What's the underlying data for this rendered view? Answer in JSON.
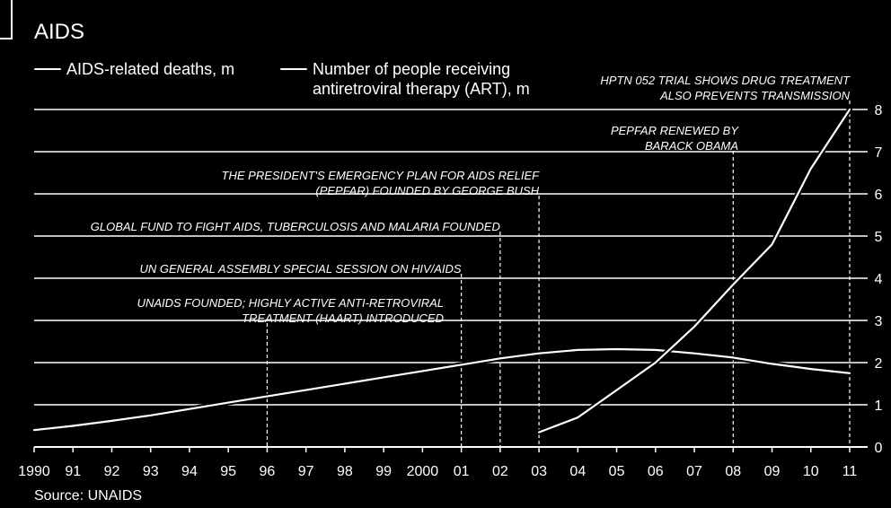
{
  "header": {
    "title": "AIDS",
    "source": "Source: UNAIDS"
  },
  "legend": [
    {
      "label": "AIDS-related deaths, m"
    },
    {
      "label": "Number of people receiving\nantiretroviral therapy (ART), m"
    }
  ],
  "colors": {
    "background": "#000000",
    "foreground": "#ffffff"
  },
  "chart_data": {
    "type": "line",
    "title": "AIDS",
    "x_tick_labels": [
      "1990",
      "91",
      "92",
      "93",
      "94",
      "95",
      "96",
      "97",
      "98",
      "99",
      "2000",
      "01",
      "02",
      "03",
      "04",
      "05",
      "06",
      "07",
      "08",
      "09",
      "10",
      "11"
    ],
    "ylim": [
      0,
      8
    ],
    "y_ticks": [
      0,
      1,
      2,
      3,
      4,
      5,
      6,
      7,
      8
    ],
    "y_axis_side": "right",
    "grid": true,
    "legend_placement": "top-left",
    "series": [
      {
        "name": "AIDS-related deaths, m",
        "x": [
          1990,
          1991,
          1992,
          1993,
          1994,
          1995,
          1996,
          1997,
          1998,
          1999,
          2000,
          2001,
          2002,
          2003,
          2004,
          2005,
          2006,
          2007,
          2008,
          2009,
          2010,
          2011
        ],
        "values": [
          0.4,
          0.5,
          0.62,
          0.75,
          0.9,
          1.05,
          1.2,
          1.35,
          1.5,
          1.65,
          1.8,
          1.95,
          2.1,
          2.22,
          2.3,
          2.32,
          2.3,
          2.22,
          2.12,
          1.97,
          1.85,
          1.75
        ]
      },
      {
        "name": "Number of people receiving antiretroviral therapy (ART), m",
        "x": [
          2003,
          2004,
          2005,
          2006,
          2007,
          2008,
          2009,
          2010,
          2011
        ],
        "values": [
          0.35,
          0.7,
          1.35,
          2.0,
          2.85,
          3.85,
          4.8,
          6.6,
          8.0
        ]
      }
    ],
    "events": [
      {
        "year": 1996,
        "label": "UNAIDS FOUNDED; HIGHLY ACTIVE ANTI-RETROVIRAL\nTREATMENT (HAART) INTRODUCED"
      },
      {
        "year": 2001,
        "label": "UN GENERAL ASSEMBLY SPECIAL SESSION ON HIV/AIDS"
      },
      {
        "year": 2002,
        "label": "GLOBAL FUND TO FIGHT AIDS, TUBERCULOSIS AND MALARIA FOUNDED"
      },
      {
        "year": 2003,
        "label": "THE PRESIDENT'S EMERGENCY PLAN FOR AIDS RELIEF\n(PEPFAR) FOUNDED BY GEORGE BUSH"
      },
      {
        "year": 2008,
        "label": "PEPFAR RENEWED BY\nBARACK OBAMA"
      },
      {
        "year": 2011,
        "label": "HPTN 052 TRIAL SHOWS DRUG TREATMENT\nALSO PREVENTS TRANSMISSION"
      }
    ]
  }
}
